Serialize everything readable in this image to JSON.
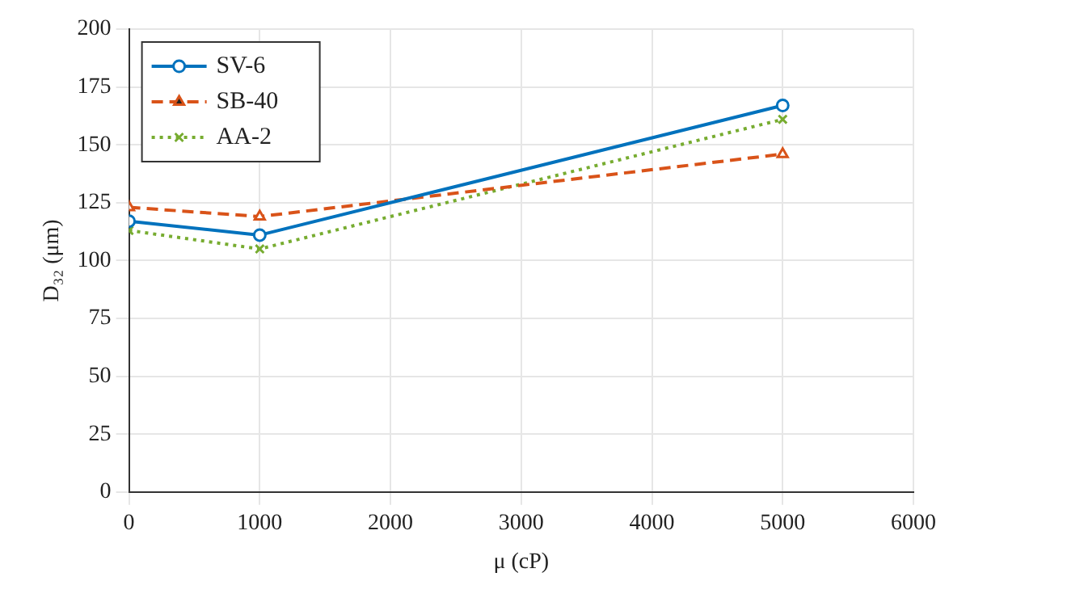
{
  "chart_data": {
    "type": "line",
    "xlabel": "μ (cP)",
    "ylabel": "D₃₂ (μm)",
    "x": [
      0,
      1000,
      5000
    ],
    "series": [
      {
        "name": "SV-6",
        "color": "#0072bd",
        "values": [
          117,
          111,
          167
        ],
        "marker": "circle",
        "line_style": "solid"
      },
      {
        "name": "SB-40",
        "color": "#d95319",
        "values": [
          123,
          119,
          146
        ],
        "marker": "triangle",
        "line_style": "dashed"
      },
      {
        "name": "AA-2",
        "color": "#77ac30",
        "values": [
          113,
          105,
          161
        ],
        "marker": "cross",
        "line_style": "dotted"
      }
    ],
    "xlim": [
      0,
      6000
    ],
    "xticks": [
      0,
      1000,
      2000,
      3000,
      4000,
      5000,
      6000
    ],
    "ylim": [
      0,
      200
    ],
    "yticks": [
      0,
      25,
      50,
      75,
      100,
      125,
      150,
      175,
      200
    ],
    "grid": true,
    "legend": "top left"
  }
}
